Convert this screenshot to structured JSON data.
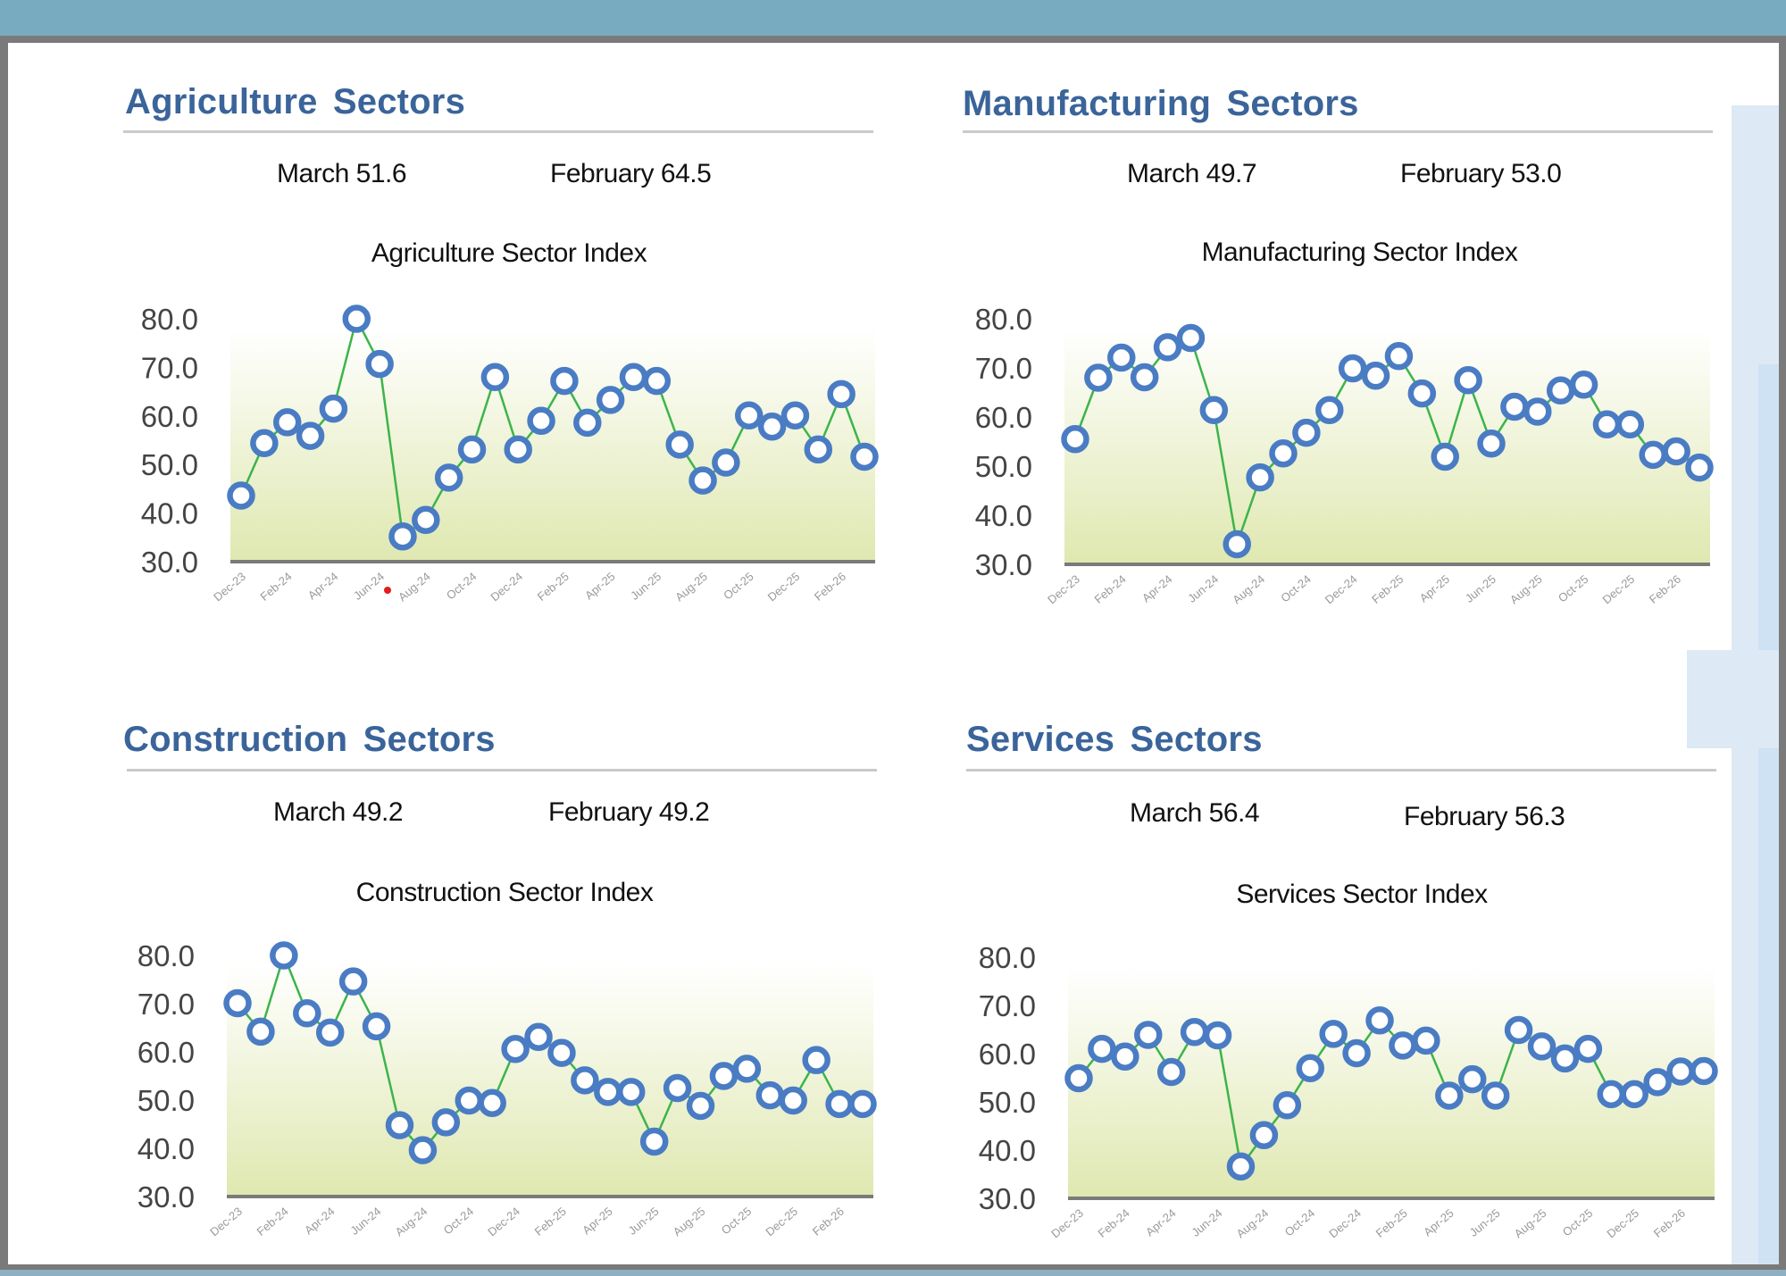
{
  "colors": {
    "header_title": "#3a649a",
    "line": "#3cb44a",
    "marker_stroke": "#4a7cc4",
    "marker_fill": "#ffffff",
    "area_top": "#ffffff",
    "area_bottom": "#dfe8b0",
    "axis": "#7a7a7a",
    "tick_text": "#444444",
    "xtick_text": "#9a9a9a"
  },
  "sections": [
    {
      "title": "Agriculture  Sectors",
      "march": "March 51.6",
      "february": "February 64.5"
    },
    {
      "title": "Manufacturing  Sectors",
      "march": "March 49.7",
      "february": "February 53.0"
    },
    {
      "title": "Construction  Sectors",
      "march": "March 49.2",
      "february": "February 49.2"
    },
    {
      "title": "Services  Sectors",
      "march": "March 56.4",
      "february": "February 56.3"
    }
  ],
  "chart_data": [
    {
      "type": "line",
      "title": "Agriculture Sector Index",
      "xlabel": "",
      "ylabel": "",
      "ylim": [
        30,
        80
      ],
      "yticks": [
        "80.0",
        "70.0",
        "60.0",
        "50.0",
        "40.0",
        "30.0"
      ],
      "x": [
        "Dec-23",
        "Jan-24",
        "Feb-24",
        "Mar-24",
        "Apr-24",
        "May-24",
        "Jun-24",
        "Jul-24",
        "Aug-24",
        "Sep-24",
        "Oct-24",
        "Nov-24",
        "Dec-24",
        "Jan-25",
        "Feb-25",
        "Mar-25",
        "Apr-25",
        "May-25",
        "Jun-25",
        "Jul-25",
        "Aug-25",
        "Sep-25",
        "Oct-25",
        "Nov-25",
        "Dec-25",
        "Jan-26",
        "Feb-26",
        "Mar-26"
      ],
      "xtick_labels": [
        "Dec-23",
        "Feb-24",
        "Apr-24",
        "Jun-24",
        "Aug-24",
        "Oct-24",
        "Dec-24",
        "Feb-25",
        "Apr-25",
        "Jun-25",
        "Aug-25",
        "Oct-25",
        "Dec-25",
        "Feb-26"
      ],
      "values": [
        43.6,
        54.4,
        58.7,
        55.9,
        61.5,
        80.0,
        70.7,
        35.2,
        38.6,
        47.3,
        53.1,
        68.0,
        53.1,
        59.0,
        67.2,
        58.6,
        63.3,
        68.0,
        67.2,
        54.1,
        46.7,
        50.4,
        60.1,
        57.8,
        60.1,
        53.1,
        64.5,
        51.6
      ],
      "grid": false,
      "legend": "none"
    },
    {
      "type": "line",
      "title": "Manufacturing Sector Index",
      "xlabel": "",
      "ylabel": "",
      "ylim": [
        30,
        80
      ],
      "yticks": [
        "80.0",
        "70.0",
        "60.0",
        "50.0",
        "40.0",
        "30.0"
      ],
      "x": [
        "Dec-23",
        "Jan-24",
        "Feb-24",
        "Mar-24",
        "Apr-24",
        "May-24",
        "Jun-24",
        "Jul-24",
        "Aug-24",
        "Sep-24",
        "Oct-24",
        "Nov-24",
        "Dec-24",
        "Jan-25",
        "Feb-25",
        "Mar-25",
        "Apr-25",
        "May-25",
        "Jun-25",
        "Jul-25",
        "Aug-25",
        "Sep-25",
        "Oct-25",
        "Nov-25",
        "Dec-25",
        "Jan-26",
        "Feb-26",
        "Mar-26"
      ],
      "xtick_labels": [
        "Dec-23",
        "Feb-24",
        "Apr-24",
        "Jun-24",
        "Aug-24",
        "Oct-24",
        "Dec-24",
        "Feb-25",
        "Apr-25",
        "Jun-25",
        "Aug-25",
        "Oct-25",
        "Dec-25",
        "Feb-26"
      ],
      "values": [
        55.5,
        68.0,
        72.1,
        68.1,
        74.2,
        76.1,
        61.4,
        34.1,
        47.7,
        52.6,
        56.8,
        61.4,
        69.9,
        68.4,
        72.4,
        64.8,
        51.9,
        67.5,
        54.6,
        62.1,
        61.1,
        65.4,
        66.6,
        58.5,
        58.5,
        52.3,
        53.0,
        49.7
      ],
      "grid": false,
      "legend": "none"
    },
    {
      "type": "line",
      "title": "Construction Sector Index",
      "xlabel": "",
      "ylabel": "",
      "ylim": [
        30,
        80
      ],
      "yticks": [
        "80.0",
        "70.0",
        "60.0",
        "50.0",
        "40.0",
        "30.0"
      ],
      "x": [
        "Dec-23",
        "Jan-24",
        "Feb-24",
        "Mar-24",
        "Apr-24",
        "May-24",
        "Jun-24",
        "Jul-24",
        "Aug-24",
        "Sep-24",
        "Oct-24",
        "Nov-24",
        "Dec-24",
        "Jan-25",
        "Feb-25",
        "Mar-25",
        "Apr-25",
        "May-25",
        "Jun-25",
        "Jul-25",
        "Aug-25",
        "Sep-25",
        "Oct-25",
        "Nov-25",
        "Dec-25",
        "Jan-26",
        "Feb-26",
        "Mar-26"
      ],
      "xtick_labels": [
        "Dec-23",
        "Feb-24",
        "Apr-24",
        "Jun-24",
        "Aug-24",
        "Oct-24",
        "Dec-24",
        "Feb-25",
        "Apr-25",
        "Jun-25",
        "Aug-25",
        "Oct-25",
        "Dec-25",
        "Feb-26"
      ],
      "values": [
        70.1,
        64.2,
        80.0,
        68.0,
        64.0,
        74.6,
        65.3,
        44.8,
        39.6,
        45.4,
        49.9,
        49.4,
        60.6,
        63.1,
        59.8,
        54.1,
        51.7,
        51.7,
        41.4,
        52.5,
        48.8,
        55.0,
        56.5,
        51.0,
        49.9,
        58.3,
        49.2,
        49.2
      ],
      "grid": false,
      "legend": "none"
    },
    {
      "type": "line",
      "title": "Services Sector Index",
      "xlabel": "",
      "ylabel": "",
      "ylim": [
        30,
        80
      ],
      "yticks": [
        "80.0",
        "70.0",
        "60.0",
        "50.0",
        "40.0",
        "30.0"
      ],
      "x": [
        "Dec-23",
        "Jan-24",
        "Feb-24",
        "Mar-24",
        "Apr-24",
        "May-24",
        "Jun-24",
        "Jul-24",
        "Aug-24",
        "Sep-24",
        "Oct-24",
        "Nov-24",
        "Dec-24",
        "Jan-25",
        "Feb-25",
        "Mar-25",
        "Apr-25",
        "May-25",
        "Jun-25",
        "Jul-25",
        "Aug-25",
        "Sep-25",
        "Oct-25",
        "Nov-25",
        "Dec-25",
        "Jan-26",
        "Feb-26",
        "Mar-26"
      ],
      "xtick_labels": [
        "Dec-23",
        "Feb-24",
        "Apr-24",
        "Jun-24",
        "Aug-24",
        "Oct-24",
        "Dec-24",
        "Feb-25",
        "Apr-25",
        "Jun-25",
        "Aug-25",
        "Oct-25",
        "Dec-25",
        "Feb-26"
      ],
      "values": [
        54.9,
        61.0,
        59.4,
        63.9,
        56.2,
        64.5,
        63.8,
        36.6,
        43.1,
        49.3,
        57.0,
        64.1,
        60.1,
        66.9,
        61.7,
        62.7,
        51.3,
        54.7,
        51.3,
        64.9,
        61.5,
        59.0,
        61.0,
        51.6,
        51.6,
        54.1,
        56.3,
        56.4
      ],
      "grid": false,
      "legend": "none"
    }
  ]
}
